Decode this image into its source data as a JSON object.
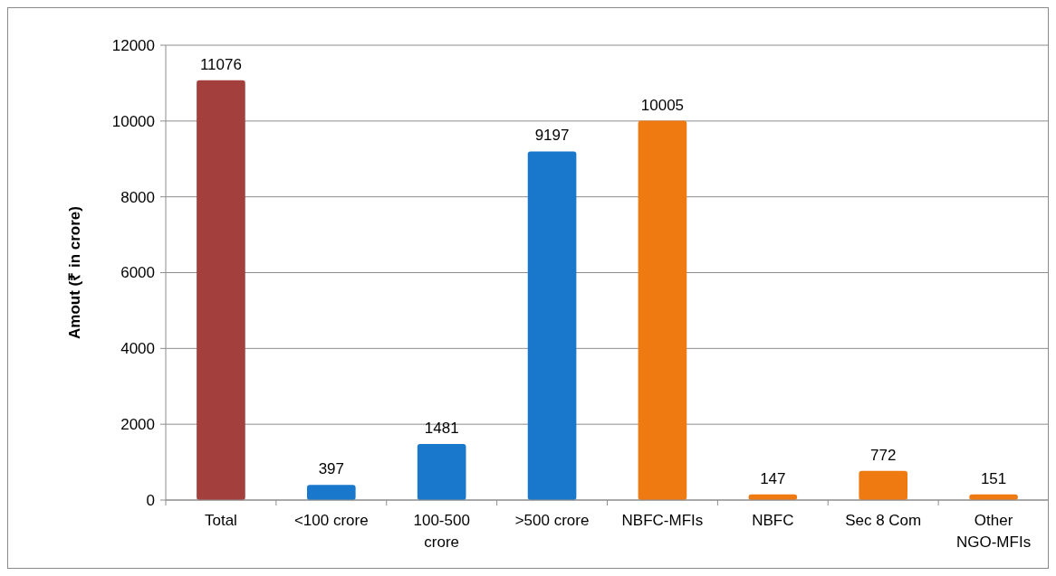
{
  "chart_data": {
    "type": "bar",
    "ylabel": "Amout (₹ in crore)",
    "categories": [
      "Total",
      "<100 crore",
      "100-500 crore",
      ">500 crore",
      "NBFC-MFIs",
      "NBFC",
      "Sec 8 Com",
      "Other NGO-MFIs"
    ],
    "values": [
      11076,
      397,
      1481,
      9197,
      10005,
      147,
      772,
      151
    ],
    "colors": [
      "#a33f3d",
      "#1a78cc",
      "#1a78cc",
      "#1a78cc",
      "#f07a12",
      "#f07a12",
      "#f07a12",
      "#f07a12"
    ],
    "ylim": [
      0,
      12000
    ],
    "yticks": [
      0,
      2000,
      4000,
      6000,
      8000,
      10000,
      12000
    ],
    "grid": "y",
    "data_labels": true
  }
}
